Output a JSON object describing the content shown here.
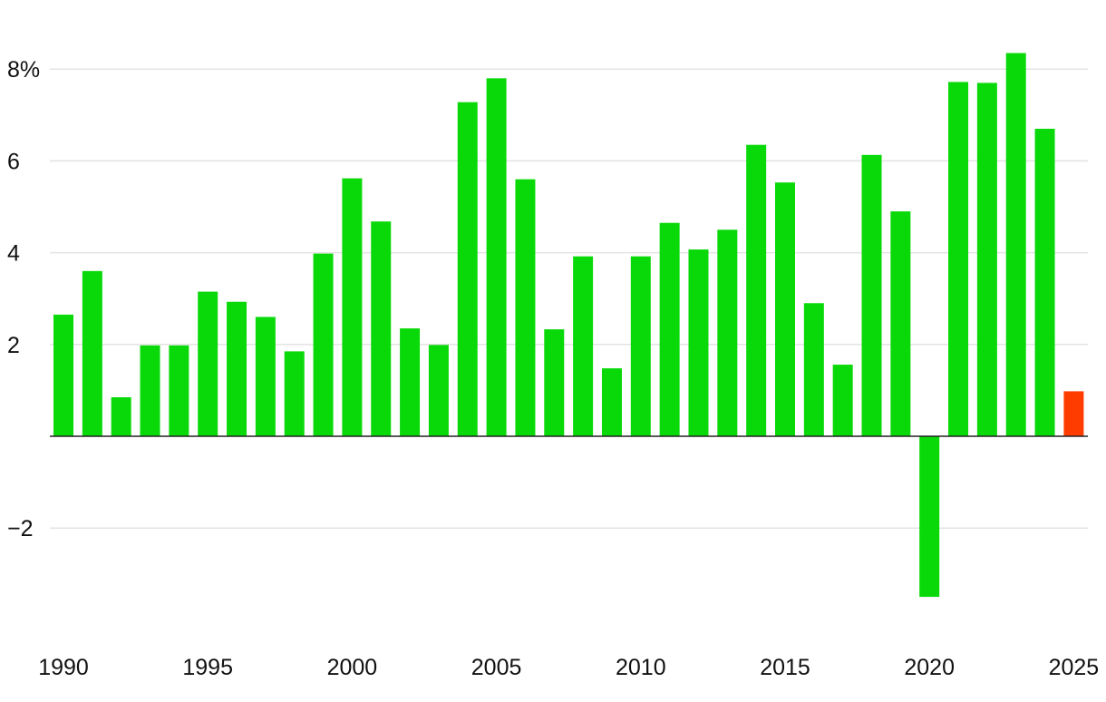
{
  "chart_data": {
    "type": "bar",
    "x": [
      1990,
      1991,
      1992,
      1993,
      1994,
      1995,
      1996,
      1997,
      1998,
      1999,
      2000,
      2001,
      2002,
      2003,
      2004,
      2005,
      2006,
      2007,
      2008,
      2009,
      2010,
      2011,
      2012,
      2013,
      2014,
      2015,
      2016,
      2017,
      2018,
      2019,
      2020,
      2021,
      2022,
      2023,
      2024,
      2025
    ],
    "values": [
      2.65,
      3.6,
      0.85,
      1.98,
      1.98,
      3.15,
      2.93,
      2.6,
      1.85,
      3.98,
      5.62,
      4.68,
      2.35,
      1.99,
      7.28,
      7.8,
      5.6,
      2.33,
      3.92,
      1.48,
      3.92,
      4.65,
      4.07,
      4.5,
      6.35,
      5.53,
      2.9,
      1.56,
      6.13,
      4.9,
      -3.5,
      7.72,
      7.7,
      8.35,
      6.7,
      0.98
    ],
    "title": "",
    "xlabel": "",
    "ylabel": "",
    "ylim": [
      -4.5,
      9.0
    ],
    "y_ticks": [
      -2,
      2,
      4,
      6,
      8
    ],
    "y_tick_labels": [
      "−2",
      "2",
      "4",
      "6",
      "8%"
    ],
    "x_ticks": [
      1990,
      1995,
      2000,
      2005,
      2010,
      2015,
      2020,
      2025
    ],
    "x_tick_labels": [
      "1990",
      "1995",
      "2000",
      "2005",
      "2010",
      "2015",
      "2020",
      "2025"
    ],
    "grid": true,
    "legend": "none",
    "colors": {
      "bar": "#09d909",
      "highlight": "#ff3c00",
      "grid": "#e3e3e3",
      "zero_line": "#222222"
    },
    "highlight_x": 2025
  }
}
